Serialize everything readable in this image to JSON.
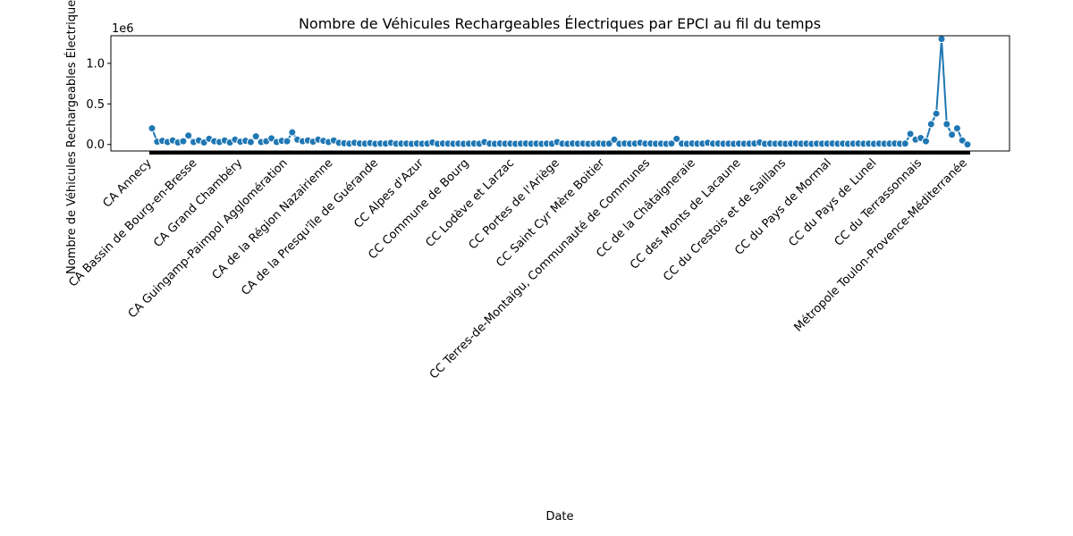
{
  "chart_data": {
    "type": "line",
    "title": "Nombre de Véhicules Rechargeables Électriques par EPCI au fil du temps",
    "xlabel": "Date",
    "ylabel": "Nombre de Véhicules Rechargeables Électriques",
    "y_offset_label": "1e6",
    "ylim": [
      -0.08,
      1.34
    ],
    "yticks": [
      0.0,
      0.5,
      1.0
    ],
    "ytick_labels": [
      "0.0",
      "0.5",
      "1.0"
    ],
    "grid": false,
    "line_color": "#1f77b4",
    "marker": "circle",
    "x_tick_labels": [
      "CA Annecy",
      "CA Bassin de Bourg-en-Bresse",
      "CA Grand Chambéry",
      "CA Guingamp-Paimpol Agglomération",
      "CA de la Région Nazairienne",
      "CA de la Presqu'île de Guérande",
      "CC Alpes d'Azur",
      "CC Commune de Bourg",
      "CC Lodève et Larzac",
      "CC Portes de l'Ariège",
      "CC Saint Cyr Mère Boitier",
      "CC Terres-de-Montaigu, Communauté de Communes",
      "CC de la Châtaigneraie",
      "CC des Monts de Lacaune",
      "CC du Crestois et de Saillans",
      "CC du Pays de Mormal",
      "CC du Pays de Lunel",
      "CC du Terrassonnais",
      "Métropole Toulon-Provence-Méditerranée"
    ],
    "series": [
      {
        "points": [
          [
            0,
            0.2
          ],
          [
            1,
            0.035
          ],
          [
            2,
            0.045
          ],
          [
            3,
            0.03
          ],
          [
            4,
            0.05
          ],
          [
            5,
            0.025
          ],
          [
            6,
            0.04
          ],
          [
            7,
            0.11
          ],
          [
            8,
            0.03
          ],
          [
            9,
            0.05
          ],
          [
            10,
            0.025
          ],
          [
            11,
            0.07
          ],
          [
            12,
            0.04
          ],
          [
            13,
            0.03
          ],
          [
            14,
            0.05
          ],
          [
            15,
            0.025
          ],
          [
            16,
            0.06
          ],
          [
            17,
            0.035
          ],
          [
            18,
            0.045
          ],
          [
            19,
            0.03
          ],
          [
            20,
            0.1
          ],
          [
            21,
            0.03
          ],
          [
            22,
            0.04
          ],
          [
            23,
            0.075
          ],
          [
            24,
            0.03
          ],
          [
            25,
            0.045
          ],
          [
            26,
            0.04
          ],
          [
            27,
            0.15
          ],
          [
            28,
            0.06
          ],
          [
            29,
            0.04
          ],
          [
            30,
            0.05
          ],
          [
            31,
            0.035
          ],
          [
            32,
            0.06
          ],
          [
            33,
            0.045
          ],
          [
            34,
            0.03
          ],
          [
            35,
            0.05
          ],
          [
            36,
            0.02
          ],
          [
            37,
            0.015
          ],
          [
            38,
            0.01
          ],
          [
            39,
            0.02
          ],
          [
            40,
            0.012
          ],
          [
            41,
            0.01
          ],
          [
            42,
            0.018
          ],
          [
            43,
            0.008
          ],
          [
            44,
            0.012
          ],
          [
            45,
            0.01
          ],
          [
            46,
            0.02
          ],
          [
            47,
            0.009
          ],
          [
            48,
            0.01
          ],
          [
            49,
            0.011
          ],
          [
            50,
            0.008
          ],
          [
            51,
            0.012
          ],
          [
            52,
            0.009
          ],
          [
            53,
            0.01
          ],
          [
            54,
            0.025
          ],
          [
            55,
            0.008
          ],
          [
            56,
            0.012
          ],
          [
            57,
            0.01
          ],
          [
            58,
            0.009
          ],
          [
            59,
            0.011
          ],
          [
            60,
            0.008
          ],
          [
            61,
            0.01
          ],
          [
            62,
            0.012
          ],
          [
            63,
            0.009
          ],
          [
            64,
            0.03
          ],
          [
            65,
            0.01
          ],
          [
            66,
            0.008
          ],
          [
            67,
            0.012
          ],
          [
            68,
            0.009
          ],
          [
            69,
            0.011
          ],
          [
            70,
            0.008
          ],
          [
            71,
            0.01
          ],
          [
            72,
            0.012
          ],
          [
            73,
            0.009
          ],
          [
            74,
            0.01
          ],
          [
            75,
            0.008
          ],
          [
            76,
            0.011
          ],
          [
            77,
            0.009
          ],
          [
            78,
            0.03
          ],
          [
            79,
            0.01
          ],
          [
            80,
            0.008
          ],
          [
            81,
            0.012
          ],
          [
            82,
            0.009
          ],
          [
            83,
            0.011
          ],
          [
            84,
            0.008
          ],
          [
            85,
            0.01
          ],
          [
            86,
            0.012
          ],
          [
            87,
            0.009
          ],
          [
            88,
            0.01
          ],
          [
            89,
            0.06
          ],
          [
            90,
            0.008
          ],
          [
            91,
            0.012
          ],
          [
            92,
            0.009
          ],
          [
            93,
            0.011
          ],
          [
            94,
            0.02
          ],
          [
            95,
            0.01
          ],
          [
            96,
            0.012
          ],
          [
            97,
            0.009
          ],
          [
            98,
            0.01
          ],
          [
            99,
            0.008
          ],
          [
            100,
            0.011
          ],
          [
            101,
            0.07
          ],
          [
            102,
            0.01
          ],
          [
            103,
            0.008
          ],
          [
            104,
            0.012
          ],
          [
            105,
            0.009
          ],
          [
            106,
            0.011
          ],
          [
            107,
            0.02
          ],
          [
            108,
            0.01
          ],
          [
            109,
            0.012
          ],
          [
            110,
            0.009
          ],
          [
            111,
            0.01
          ],
          [
            112,
            0.008
          ],
          [
            113,
            0.011
          ],
          [
            114,
            0.009
          ],
          [
            115,
            0.01
          ],
          [
            116,
            0.012
          ],
          [
            117,
            0.025
          ],
          [
            118,
            0.008
          ],
          [
            119,
            0.012
          ],
          [
            120,
            0.009
          ],
          [
            121,
            0.011
          ],
          [
            122,
            0.008
          ],
          [
            123,
            0.01
          ],
          [
            124,
            0.012
          ],
          [
            125,
            0.009
          ],
          [
            126,
            0.01
          ],
          [
            127,
            0.008
          ],
          [
            128,
            0.011
          ],
          [
            129,
            0.009
          ],
          [
            130,
            0.01
          ],
          [
            131,
            0.012
          ],
          [
            132,
            0.009
          ],
          [
            133,
            0.011
          ],
          [
            134,
            0.008
          ],
          [
            135,
            0.01
          ],
          [
            136,
            0.012
          ],
          [
            137,
            0.009
          ],
          [
            138,
            0.01
          ],
          [
            139,
            0.008
          ],
          [
            140,
            0.011
          ],
          [
            141,
            0.009
          ],
          [
            142,
            0.01
          ],
          [
            143,
            0.012
          ],
          [
            144,
            0.009
          ],
          [
            145,
            0.01
          ],
          [
            146,
            0.13
          ],
          [
            147,
            0.06
          ],
          [
            148,
            0.08
          ],
          [
            149,
            0.04
          ],
          [
            150,
            0.25
          ],
          [
            151,
            0.38
          ],
          [
            152,
            1.3
          ],
          [
            153,
            0.25
          ],
          [
            154,
            0.12
          ],
          [
            155,
            0.2
          ],
          [
            156,
            0.05
          ],
          [
            157,
            0.0
          ]
        ]
      }
    ]
  }
}
